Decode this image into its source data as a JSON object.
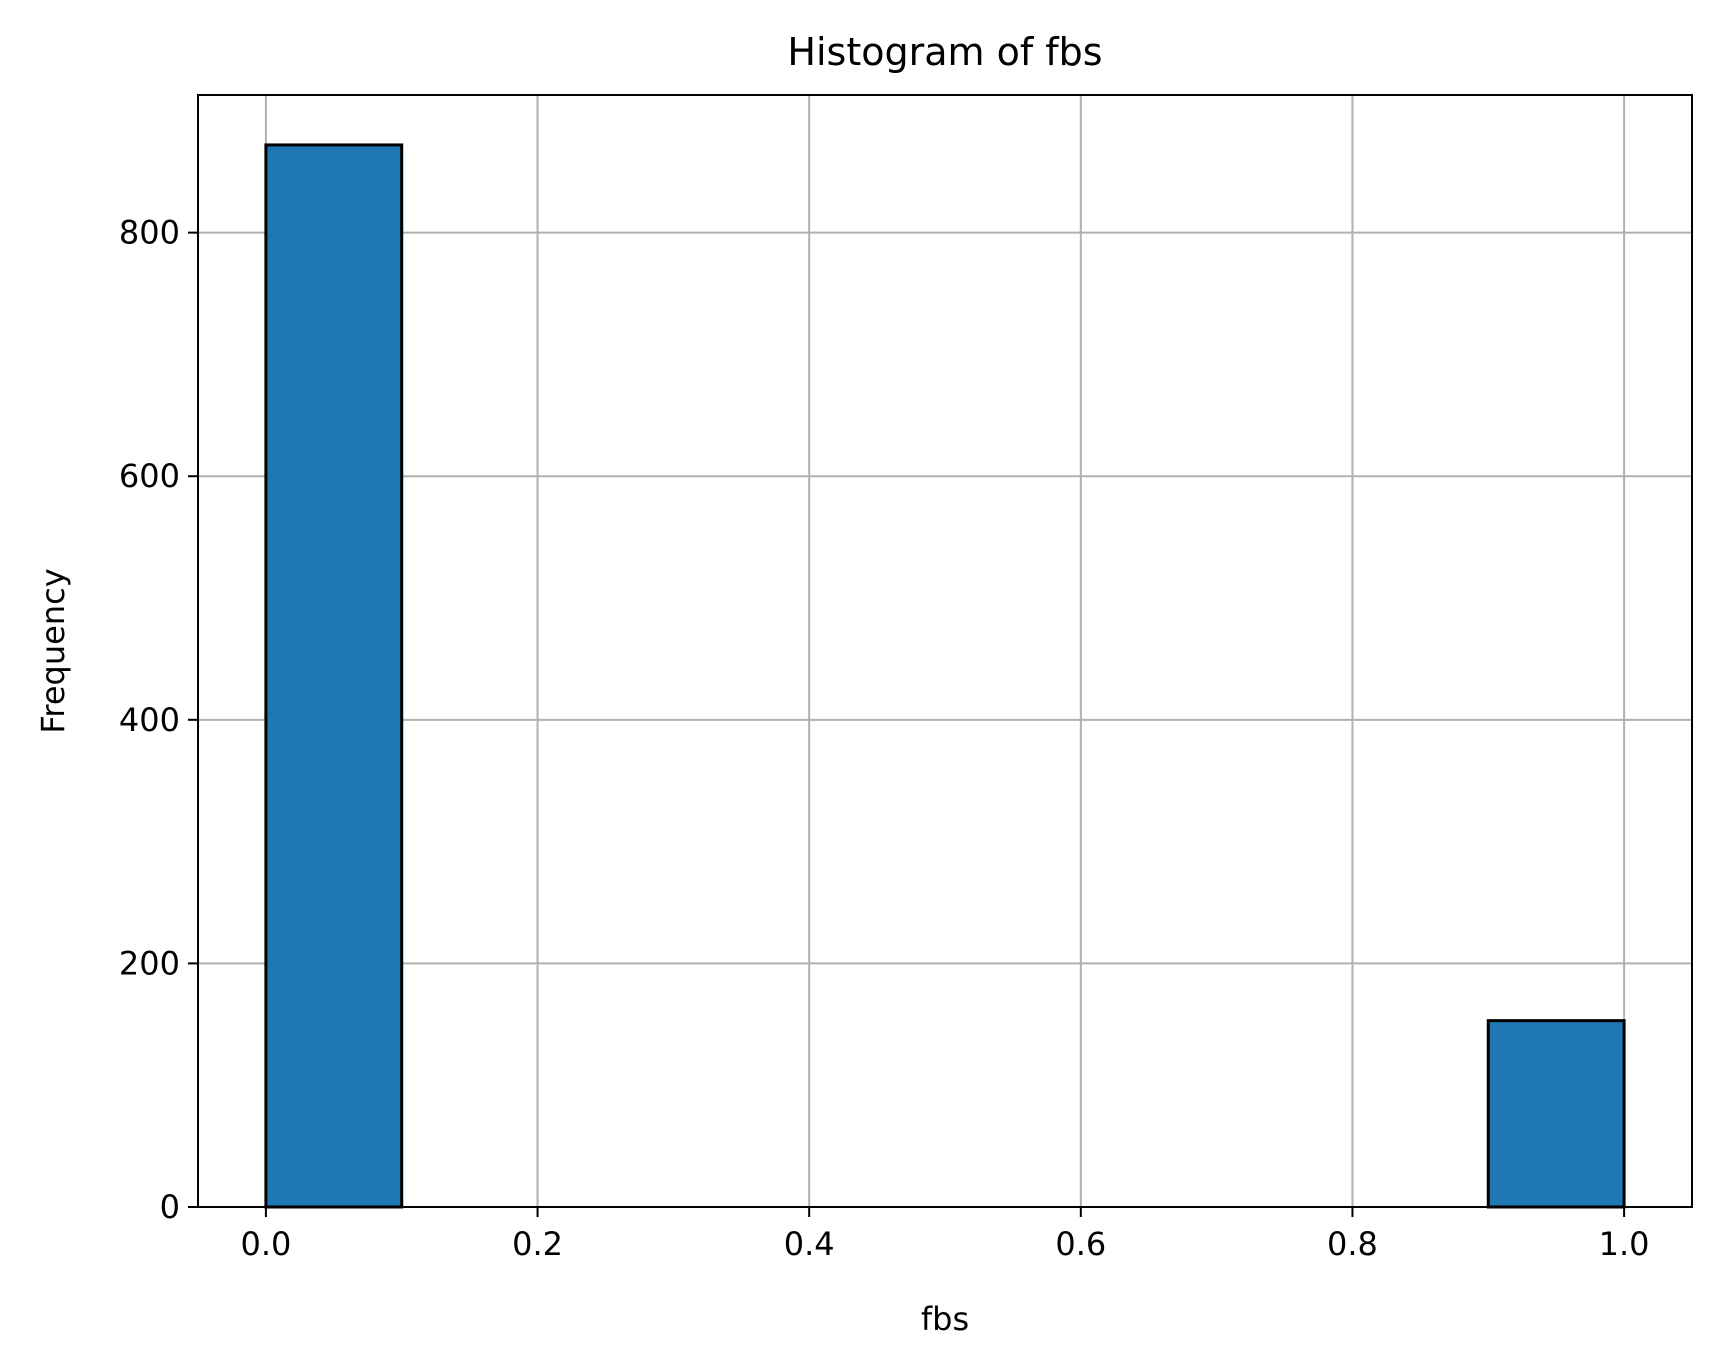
{
  "chart_data": {
    "type": "bar",
    "title": "Histogram of fbs",
    "xlabel": "fbs",
    "ylabel": "Frequency",
    "xlim": [
      -0.05,
      1.05
    ],
    "ylim": [
      0,
      913
    ],
    "grid": true,
    "bins": [
      {
        "x0": 0.0,
        "x1": 0.1,
        "count": 872
      },
      {
        "x0": 0.9,
        "x1": 1.0,
        "count": 153
      }
    ],
    "x_ticks": [
      0.0,
      0.2,
      0.4,
      0.6,
      0.8,
      1.0
    ],
    "x_tick_labels": [
      "0.0",
      "0.2",
      "0.4",
      "0.6",
      "0.8",
      "1.0"
    ],
    "y_ticks": [
      0,
      200,
      400,
      600,
      800
    ],
    "y_tick_labels": [
      "0",
      "200",
      "400",
      "600",
      "800"
    ],
    "colors": {
      "bar_fill": "#1f77b4",
      "bar_edge": "#000000",
      "grid": "#b0b0b0"
    }
  }
}
